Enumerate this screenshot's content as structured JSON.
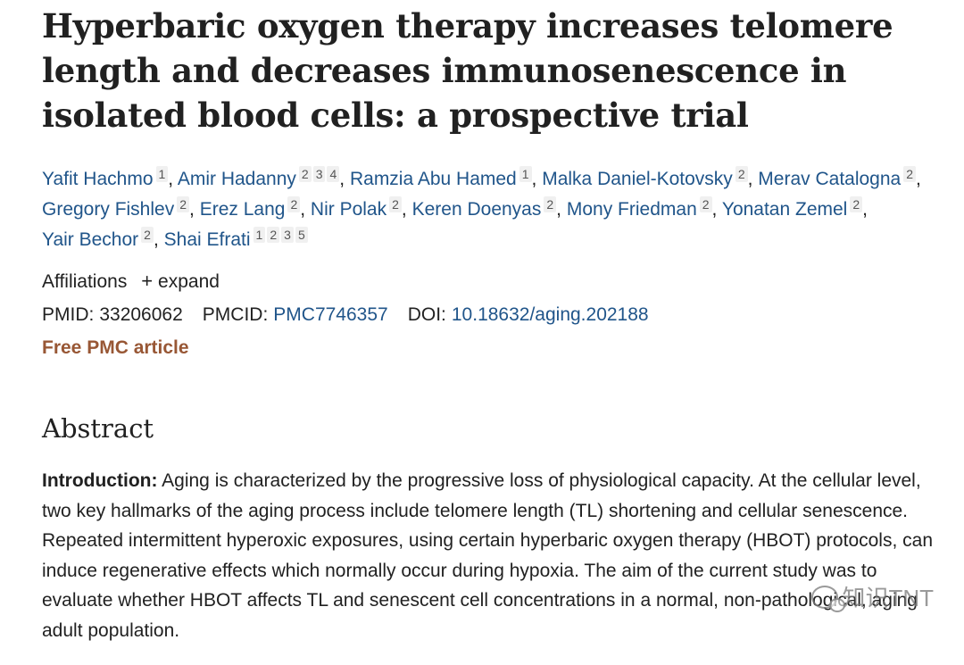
{
  "article": {
    "title": "Hyperbaric oxygen therapy increases telomere length and decreases immunosenescence in isolated blood cells: a prospective trial",
    "authors": [
      {
        "name": "Yafit Hachmo",
        "affs": [
          "1"
        ]
      },
      {
        "name": "Amir Hadanny",
        "affs": [
          "2",
          "3",
          "4"
        ]
      },
      {
        "name": "Ramzia Abu Hamed",
        "affs": [
          "1"
        ]
      },
      {
        "name": "Malka Daniel-Kotovsky",
        "affs": [
          "2"
        ]
      },
      {
        "name": "Merav Catalogna",
        "affs": [
          "2"
        ]
      },
      {
        "name": "Gregory Fishlev",
        "affs": [
          "2"
        ]
      },
      {
        "name": "Erez Lang",
        "affs": [
          "2"
        ]
      },
      {
        "name": "Nir Polak",
        "affs": [
          "2"
        ]
      },
      {
        "name": "Keren Doenyas",
        "affs": [
          "2"
        ]
      },
      {
        "name": "Mony Friedman",
        "affs": [
          "2"
        ]
      },
      {
        "name": "Yonatan Zemel",
        "affs": [
          "2"
        ]
      },
      {
        "name": "Yair Bechor",
        "affs": [
          "2"
        ]
      },
      {
        "name": "Shai Efrati",
        "affs": [
          "1",
          "2",
          "3",
          "5"
        ]
      }
    ],
    "affiliations_label": "Affiliations",
    "expand_label": "expand",
    "expand_icon": "+",
    "pmid_label": "PMID:",
    "pmid": "33206062",
    "pmcid_label": "PMCID:",
    "pmcid": "PMC7746357",
    "doi_label": "DOI:",
    "doi": "10.18632/aging.202188",
    "free_pmc": "Free PMC article",
    "abstract_heading": "Abstract",
    "intro_label": "Introduction:",
    "intro_text": " Aging is characterized by the progressive loss of physiological capacity. At the cellular level, two key hallmarks of the aging process include telomere length (TL) shortening and cellular senescence. Repeated intermittent hyperoxic exposures, using certain hyperbaric oxygen therapy (HBOT) protocols, can induce regenerative effects which normally occur during hypoxia. The aim of the current study was to evaluate whether HBOT affects TL and senescent cell concentrations in a normal, non-pathological, aging adult population."
  },
  "watermark": {
    "text": "知识TNT",
    "icon": "wechat-icon"
  }
}
